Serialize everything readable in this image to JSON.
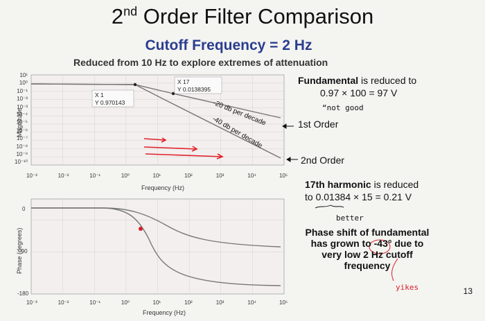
{
  "slide": {
    "title_main": "2",
    "title_sup": "nd",
    "title_rest": " Order Filter Comparison",
    "subtitle": "Cutoff Frequency = 2 Hz",
    "subtitle2": "Reduced from 10 Hz to explore extremes of attenuation",
    "page_number": "13"
  },
  "magnitude_plot": {
    "ylabel": "Magnitude",
    "xlabel": "Frequency (Hz)",
    "y_ticks": [
      "10^1",
      "10^0",
      "10^-1",
      "10^-2",
      "10^-3",
      "10^-4",
      "10^-5",
      "10^-6",
      "10^-7",
      "10^-8",
      "10^-9",
      "10^-10"
    ],
    "y_ticks_text": [
      "10¹",
      "10⁰",
      "10⁻¹",
      "10⁻²",
      "10⁻³",
      "10⁻⁴",
      "10⁻⁵",
      "10⁻⁶",
      "10⁻⁷",
      "10⁻⁸",
      "10⁻⁹",
      "10⁻¹⁰"
    ],
    "x_ticks_text": [
      "10⁻³",
      "10⁻²",
      "10⁻¹",
      "10⁰",
      "10¹",
      "10²",
      "10³",
      "10⁴",
      "10⁵"
    ],
    "datatip1": {
      "x": "X 1",
      "y": "Y 0.970143"
    },
    "datatip2": {
      "x": "X 17",
      "y": "Y 0.0138395"
    },
    "slope1_label": "-20 db per decade",
    "slope2_label": "-40 db per decade"
  },
  "phase_plot": {
    "ylabel": "Phase (degrees)",
    "xlabel": "Frequency (Hz)",
    "y_ticks_text": [
      "0",
      "-90",
      "-180"
    ],
    "x_ticks_text": [
      "10⁻³",
      "10⁻²",
      "10⁻¹",
      "10⁰",
      "10¹",
      "10²",
      "10³",
      "10⁴",
      "10⁵"
    ]
  },
  "annotations": {
    "fundamental_bold": "Fundamental",
    "fundamental_rest": " is reduced to",
    "fundamental_calc": "0.97 × 100 = 97 V",
    "hand_not_good": "“not good",
    "first_order": "1st Order",
    "second_order": "2nd Order",
    "harmonic_bold": "17th harmonic",
    "harmonic_rest": " is reduced",
    "harmonic_calc": "to 0.01384 × 15 = 0.21 V",
    "hand_better": "better",
    "phase_line1": "Phase shift of fundamental",
    "phase_line2": "has grown to -43° due to",
    "phase_line3": "very low 2 Hz cutoff",
    "phase_line4": "frequency",
    "hand_yikes": "yikes"
  },
  "colors": {
    "subtitle": "#2a3d8f",
    "curve": "#777777",
    "red_arrows": "#e0202a",
    "marker_red": "#d8202a",
    "plot_bg": "#f3efee"
  }
}
